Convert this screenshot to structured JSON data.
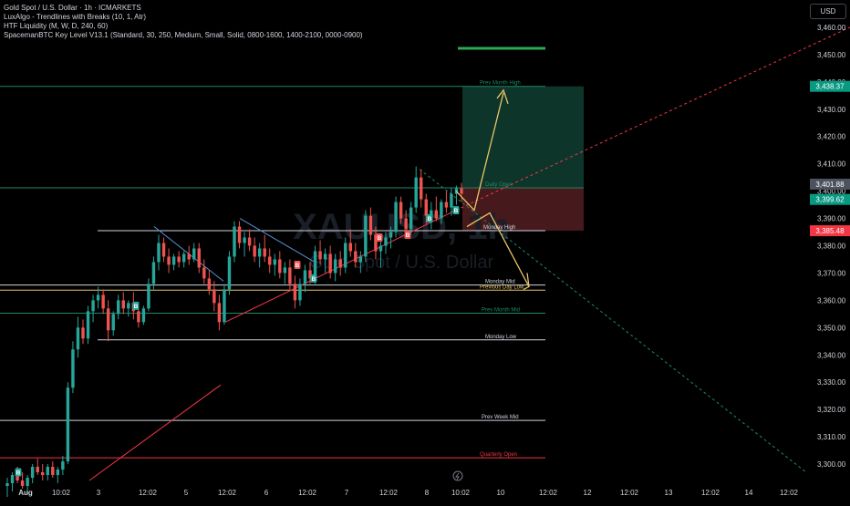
{
  "legend": {
    "title": "Gold Spot / U.S. Dollar · 1h · ICMARKETS",
    "indicators": [
      "LuxAlgo - Trendlines with Breaks (10, 1, Atr)",
      "HTF Liquidity (M, W, D, 240, 60)",
      "SpacemanBTC Key Level V13.1 (Standard, 30, 250, Medium, Small, Solid, 0800-1600, 1400-2100, 0000-0900)"
    ]
  },
  "currency_button": "USD",
  "watermark": {
    "symbol": "XAUUSD, 1h",
    "name": "Gold Spot / U.S. Dollar"
  },
  "colors": {
    "background": "#000000",
    "up": "#26a69a",
    "down": "#ef5350",
    "key_level": "#ffffff",
    "projection": "#e8c468",
    "trend_red": "#f23645",
    "trend_green": "#1f8a64",
    "long_zone": "#0e3b2f",
    "short_zone": "#4a1a1e"
  },
  "chart_data": {
    "type": "candlestick",
    "symbol": "XAUUSD",
    "timeframe": "1h",
    "ylim": [
      3293,
      3470
    ],
    "y_ticks": [
      "3,300.00",
      "3,310.00",
      "3,320.00",
      "3,330.00",
      "3,340.00",
      "3,350.00",
      "3,360.00",
      "3,370.00",
      "3,380.00",
      "3,390.00",
      "3,400.00",
      "3,410.00",
      "3,420.00",
      "3,430.00",
      "3,440.00",
      "3,450.00",
      "3,460.00"
    ],
    "x_ticks": [
      "Aug",
      "10:02",
      "3",
      "12:02",
      "5",
      "12:02",
      "6",
      "12:02",
      "7",
      "12:02",
      "8",
      "10:02",
      "10",
      "12:02",
      "12",
      "12:02",
      "13",
      "12:02",
      "14",
      "12:02"
    ],
    "price_tags": [
      {
        "label": "3,438.37",
        "value": 3438.37,
        "kind": "target"
      },
      {
        "label": "3,401.88",
        "value": 3401.88,
        "kind": "neutral"
      },
      {
        "label": "3,399.62",
        "value": 3399.62,
        "kind": "last"
      },
      {
        "label": "3,385.48",
        "value": 3385.48,
        "kind": "stop"
      }
    ],
    "key_levels": [
      {
        "label": "Prev Month High",
        "value": 3438.37
      },
      {
        "label": "Daily Open",
        "value": 3401.2
      },
      {
        "label": "Monday High",
        "value": 3385.5
      },
      {
        "label": "Monday Mid",
        "value": 3365.6
      },
      {
        "label": "Previous Day Low",
        "value": 3363.7
      },
      {
        "label": "Prev Month Mid",
        "value": 3355.3
      },
      {
        "label": "Monday Low",
        "value": 3345.5
      },
      {
        "label": "Prev Week Mid",
        "value": 3316.0
      },
      {
        "label": "Quarterly Open",
        "value": 3302.3
      }
    ],
    "position": {
      "entry": 3401.5,
      "target": 3438.37,
      "stop": 3385.48
    },
    "signals": [
      "B",
      "B",
      "B",
      "B",
      "B",
      "B",
      "B",
      "B"
    ],
    "candles": [
      [
        3292,
        3295,
        3288,
        3293
      ],
      [
        3293,
        3297,
        3290,
        3296
      ],
      [
        3296,
        3299,
        3293,
        3294
      ],
      [
        3294,
        3297,
        3291,
        3292
      ],
      [
        3292,
        3296,
        3289,
        3295
      ],
      [
        3295,
        3300,
        3293,
        3299
      ],
      [
        3299,
        3302,
        3296,
        3297
      ],
      [
        3297,
        3300,
        3294,
        3296
      ],
      [
        3296,
        3300,
        3294,
        3299
      ],
      [
        3299,
        3301,
        3295,
        3296
      ],
      [
        3296,
        3299,
        3293,
        3298
      ],
      [
        3298,
        3303,
        3296,
        3301
      ],
      [
        3301,
        3330,
        3300,
        3328
      ],
      [
        3328,
        3345,
        3326,
        3342
      ],
      [
        3342,
        3354,
        3339,
        3350
      ],
      [
        3350,
        3353,
        3344,
        3346
      ],
      [
        3346,
        3358,
        3344,
        3356
      ],
      [
        3356,
        3362,
        3352,
        3360
      ],
      [
        3360,
        3365,
        3357,
        3362
      ],
      [
        3362,
        3364,
        3355,
        3357
      ],
      [
        3357,
        3360,
        3345,
        3349
      ],
      [
        3349,
        3356,
        3347,
        3355
      ],
      [
        3355,
        3362,
        3353,
        3360
      ],
      [
        3360,
        3363,
        3355,
        3357
      ],
      [
        3357,
        3360,
        3354,
        3359
      ],
      [
        3359,
        3363,
        3353,
        3356
      ],
      [
        3356,
        3359,
        3350,
        3352
      ],
      [
        3352,
        3358,
        3351,
        3357
      ],
      [
        3357,
        3368,
        3356,
        3366
      ],
      [
        3366,
        3376,
        3364,
        3374
      ],
      [
        3374,
        3384,
        3371,
        3381
      ],
      [
        3381,
        3383,
        3374,
        3376
      ],
      [
        3376,
        3379,
        3370,
        3373
      ],
      [
        3373,
        3377,
        3371,
        3376
      ],
      [
        3376,
        3378,
        3372,
        3374
      ],
      [
        3374,
        3378,
        3372,
        3377
      ],
      [
        3377,
        3380,
        3373,
        3375
      ],
      [
        3375,
        3381,
        3374,
        3379
      ],
      [
        3379,
        3381,
        3370,
        3372
      ],
      [
        3372,
        3375,
        3366,
        3368
      ],
      [
        3368,
        3371,
        3362,
        3364
      ],
      [
        3364,
        3367,
        3356,
        3359
      ],
      [
        3359,
        3362,
        3349,
        3352
      ],
      [
        3352,
        3366,
        3351,
        3364
      ],
      [
        3364,
        3378,
        3362,
        3376
      ],
      [
        3376,
        3389,
        3374,
        3387
      ],
      [
        3387,
        3389,
        3379,
        3381
      ],
      [
        3381,
        3385,
        3376,
        3383
      ],
      [
        3383,
        3386,
        3378,
        3380
      ],
      [
        3380,
        3383,
        3374,
        3376
      ],
      [
        3376,
        3381,
        3372,
        3379
      ],
      [
        3379,
        3384,
        3374,
        3376
      ],
      [
        3376,
        3379,
        3370,
        3373
      ],
      [
        3373,
        3377,
        3369,
        3375
      ],
      [
        3375,
        3378,
        3368,
        3370
      ],
      [
        3370,
        3374,
        3366,
        3372
      ],
      [
        3372,
        3375,
        3364,
        3366
      ],
      [
        3366,
        3369,
        3357,
        3360
      ],
      [
        3360,
        3368,
        3358,
        3366
      ],
      [
        3366,
        3373,
        3363,
        3371
      ],
      [
        3371,
        3374,
        3366,
        3368
      ],
      [
        3368,
        3380,
        3366,
        3378
      ],
      [
        3378,
        3382,
        3373,
        3375
      ],
      [
        3375,
        3379,
        3370,
        3377
      ],
      [
        3377,
        3380,
        3368,
        3370
      ],
      [
        3370,
        3377,
        3367,
        3375
      ],
      [
        3375,
        3378,
        3369,
        3372
      ],
      [
        3372,
        3383,
        3370,
        3381
      ],
      [
        3381,
        3386,
        3376,
        3378
      ],
      [
        3378,
        3381,
        3372,
        3374
      ],
      [
        3374,
        3378,
        3370,
        3376
      ],
      [
        3376,
        3393,
        3374,
        3391
      ],
      [
        3391,
        3394,
        3382,
        3384
      ],
      [
        3384,
        3387,
        3375,
        3378
      ],
      [
        3378,
        3382,
        3372,
        3380
      ],
      [
        3380,
        3385,
        3377,
        3383
      ],
      [
        3383,
        3387,
        3379,
        3385
      ],
      [
        3385,
        3398,
        3383,
        3396
      ],
      [
        3396,
        3398,
        3388,
        3390
      ],
      [
        3390,
        3393,
        3384,
        3386
      ],
      [
        3386,
        3396,
        3384,
        3394
      ],
      [
        3394,
        3409,
        3392,
        3405
      ],
      [
        3405,
        3408,
        3394,
        3397
      ],
      [
        3397,
        3399,
        3388,
        3391
      ],
      [
        3391,
        3396,
        3386,
        3393
      ],
      [
        3393,
        3398,
        3389,
        3390
      ],
      [
        3390,
        3397,
        3388,
        3396
      ],
      [
        3396,
        3400,
        3392,
        3394
      ],
      [
        3394,
        3401,
        3391,
        3399
      ],
      [
        3399,
        3402,
        3395,
        3401
      ],
      [
        3401,
        3403,
        3396,
        3399
      ]
    ]
  }
}
